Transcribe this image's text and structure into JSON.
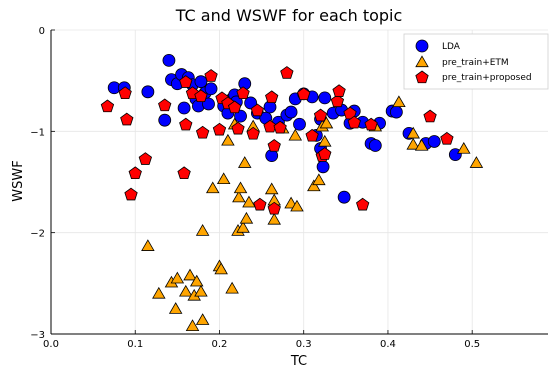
{
  "chart_data": {
    "type": "scatter",
    "title": "TC and WSWF for each topic",
    "xlabel": "TC",
    "ylabel": "WSWF",
    "xlim": [
      0.0,
      0.59
    ],
    "ylim": [
      -3.0,
      0.0
    ],
    "xticks": [
      0.0,
      0.1,
      0.2,
      0.3,
      0.4,
      0.5
    ],
    "xtick_labels": [
      "0.0",
      "0.1",
      "0.2",
      "0.3",
      "0.4",
      "0.5"
    ],
    "yticks": [
      -3,
      -2,
      -1,
      0
    ],
    "ytick_labels": [
      "−3",
      "−2",
      "−1",
      "0"
    ],
    "grid": true,
    "legend_position": "top-right",
    "series": [
      {
        "name": "LDA",
        "marker": "circle",
        "color": "#0000FF",
        "points": [
          [
            0.075,
            -0.57
          ],
          [
            0.087,
            -0.57
          ],
          [
            0.115,
            -0.61
          ],
          [
            0.135,
            -0.89
          ],
          [
            0.14,
            -0.3
          ],
          [
            0.143,
            -0.49
          ],
          [
            0.15,
            -0.53
          ],
          [
            0.155,
            -0.44
          ],
          [
            0.158,
            -0.77
          ],
          [
            0.163,
            -0.47
          ],
          [
            0.168,
            -0.54
          ],
          [
            0.172,
            -0.68
          ],
          [
            0.175,
            -0.75
          ],
          [
            0.178,
            -0.51
          ],
          [
            0.183,
            -0.62
          ],
          [
            0.187,
            -0.73
          ],
          [
            0.19,
            -0.58
          ],
          [
            0.205,
            -0.75
          ],
          [
            0.21,
            -0.82
          ],
          [
            0.215,
            -0.68
          ],
          [
            0.218,
            -0.64
          ],
          [
            0.22,
            -0.71
          ],
          [
            0.225,
            -0.85
          ],
          [
            0.23,
            -0.53
          ],
          [
            0.237,
            -0.72
          ],
          [
            0.245,
            -0.82
          ],
          [
            0.255,
            -0.87
          ],
          [
            0.26,
            -0.76
          ],
          [
            0.262,
            -1.24
          ],
          [
            0.27,
            -0.91
          ],
          [
            0.28,
            -0.84
          ],
          [
            0.285,
            -0.81
          ],
          [
            0.29,
            -0.68
          ],
          [
            0.295,
            -0.93
          ],
          [
            0.3,
            -0.63
          ],
          [
            0.31,
            -0.66
          ],
          [
            0.315,
            -1.04
          ],
          [
            0.32,
            -0.88
          ],
          [
            0.32,
            -1.17
          ],
          [
            0.323,
            -1.35
          ],
          [
            0.325,
            -0.67
          ],
          [
            0.335,
            -0.82
          ],
          [
            0.345,
            -0.79
          ],
          [
            0.348,
            -1.65
          ],
          [
            0.355,
            -0.92
          ],
          [
            0.36,
            -0.8
          ],
          [
            0.37,
            -0.91
          ],
          [
            0.38,
            -1.12
          ],
          [
            0.385,
            -1.14
          ],
          [
            0.39,
            -0.92
          ],
          [
            0.405,
            -0.8
          ],
          [
            0.41,
            -0.81
          ],
          [
            0.425,
            -1.02
          ],
          [
            0.445,
            -1.12
          ],
          [
            0.455,
            -1.1
          ],
          [
            0.48,
            -1.23
          ]
        ]
      },
      {
        "name": "pre_train+ETM",
        "marker": "triangle",
        "color": "#FFA500",
        "points": [
          [
            0.115,
            -2.13
          ],
          [
            0.128,
            -2.6
          ],
          [
            0.143,
            -2.49
          ],
          [
            0.148,
            -2.75
          ],
          [
            0.15,
            -2.45
          ],
          [
            0.16,
            -2.58
          ],
          [
            0.165,
            -2.42
          ],
          [
            0.168,
            -2.92
          ],
          [
            0.17,
            -2.62
          ],
          [
            0.173,
            -2.48
          ],
          [
            0.178,
            -2.58
          ],
          [
            0.18,
            -1.98
          ],
          [
            0.18,
            -2.86
          ],
          [
            0.192,
            -1.56
          ],
          [
            0.2,
            -2.33
          ],
          [
            0.202,
            -2.36
          ],
          [
            0.205,
            -1.47
          ],
          [
            0.21,
            -1.09
          ],
          [
            0.215,
            -2.55
          ],
          [
            0.218,
            -0.93
          ],
          [
            0.222,
            -1.98
          ],
          [
            0.223,
            -1.65
          ],
          [
            0.225,
            -1.56
          ],
          [
            0.228,
            -1.95
          ],
          [
            0.23,
            -1.31
          ],
          [
            0.232,
            -1.86
          ],
          [
            0.235,
            -1.7
          ],
          [
            0.24,
            -0.95
          ],
          [
            0.262,
            -1.57
          ],
          [
            0.265,
            -1.68
          ],
          [
            0.265,
            -1.87
          ],
          [
            0.275,
            -0.97
          ],
          [
            0.285,
            -1.71
          ],
          [
            0.29,
            -1.04
          ],
          [
            0.292,
            -1.74
          ],
          [
            0.312,
            -1.54
          ],
          [
            0.318,
            -1.48
          ],
          [
            0.322,
            -0.95
          ],
          [
            0.325,
            -1.1
          ],
          [
            0.327,
            -0.92
          ],
          [
            0.385,
            -0.95
          ],
          [
            0.413,
            -0.71
          ],
          [
            0.43,
            -1.13
          ],
          [
            0.43,
            -1.02
          ],
          [
            0.44,
            -1.14
          ],
          [
            0.49,
            -1.17
          ],
          [
            0.505,
            -1.31
          ]
        ]
      },
      {
        "name": "pre_train+proposed",
        "marker": "pentagon",
        "color": "#FF0000",
        "points": [
          [
            0.067,
            -0.75
          ],
          [
            0.088,
            -0.62
          ],
          [
            0.09,
            -0.88
          ],
          [
            0.095,
            -1.62
          ],
          [
            0.1,
            -1.41
          ],
          [
            0.112,
            -1.27
          ],
          [
            0.135,
            -0.74
          ],
          [
            0.158,
            -1.41
          ],
          [
            0.16,
            -0.93
          ],
          [
            0.16,
            -0.51
          ],
          [
            0.168,
            -0.62
          ],
          [
            0.178,
            -0.65
          ],
          [
            0.18,
            -1.01
          ],
          [
            0.19,
            -0.45
          ],
          [
            0.2,
            -0.98
          ],
          [
            0.203,
            -0.67
          ],
          [
            0.21,
            -0.72
          ],
          [
            0.218,
            -0.76
          ],
          [
            0.222,
            -0.97
          ],
          [
            0.228,
            -0.62
          ],
          [
            0.24,
            -1.02
          ],
          [
            0.245,
            -0.79
          ],
          [
            0.248,
            -1.72
          ],
          [
            0.26,
            -0.95
          ],
          [
            0.262,
            -0.66
          ],
          [
            0.265,
            -1.14
          ],
          [
            0.265,
            -1.76
          ],
          [
            0.272,
            -0.96
          ],
          [
            0.28,
            -0.42
          ],
          [
            0.3,
            -0.63
          ],
          [
            0.31,
            -1.04
          ],
          [
            0.32,
            -0.84
          ],
          [
            0.322,
            -1.24
          ],
          [
            0.325,
            -1.22
          ],
          [
            0.34,
            -0.7
          ],
          [
            0.342,
            -0.6
          ],
          [
            0.355,
            -0.82
          ],
          [
            0.36,
            -0.91
          ],
          [
            0.37,
            -1.72
          ],
          [
            0.38,
            -0.93
          ],
          [
            0.45,
            -0.85
          ],
          [
            0.47,
            -1.07
          ]
        ]
      }
    ]
  }
}
